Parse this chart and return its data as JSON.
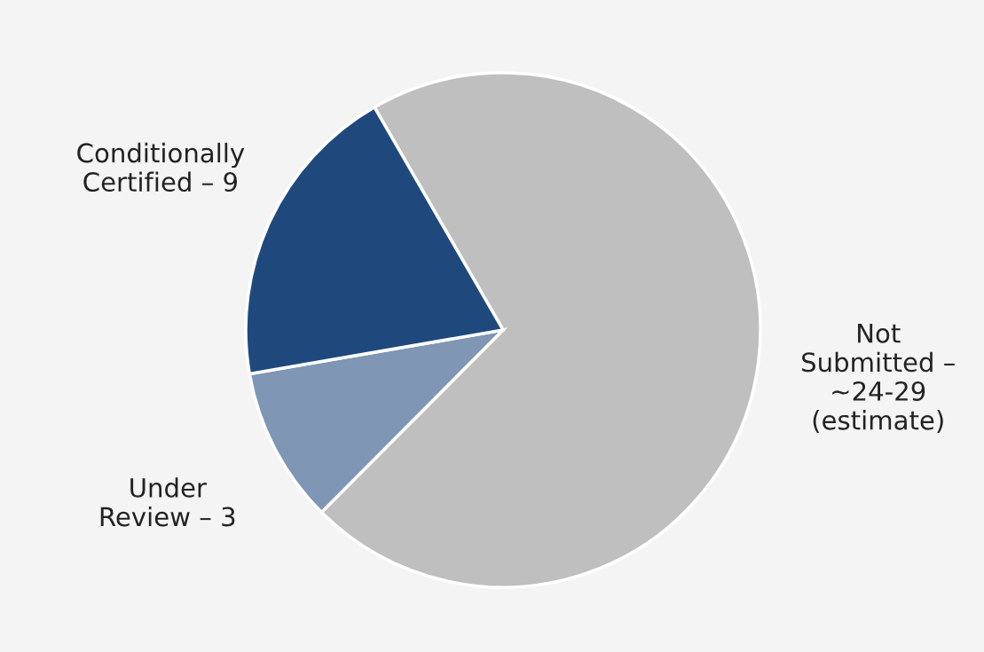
{
  "chart_data": {
    "type": "pie",
    "categories": [
      "Not\nSubmitted –\n~24-29\n(estimate)",
      "Under\nReview – 3",
      "Conditionally\nCertified – 9"
    ],
    "values": [
      70.8,
      9.8,
      19.4
    ],
    "colors": [
      "#bfbfbf",
      "#7f96b4",
      "#1f497d"
    ]
  }
}
